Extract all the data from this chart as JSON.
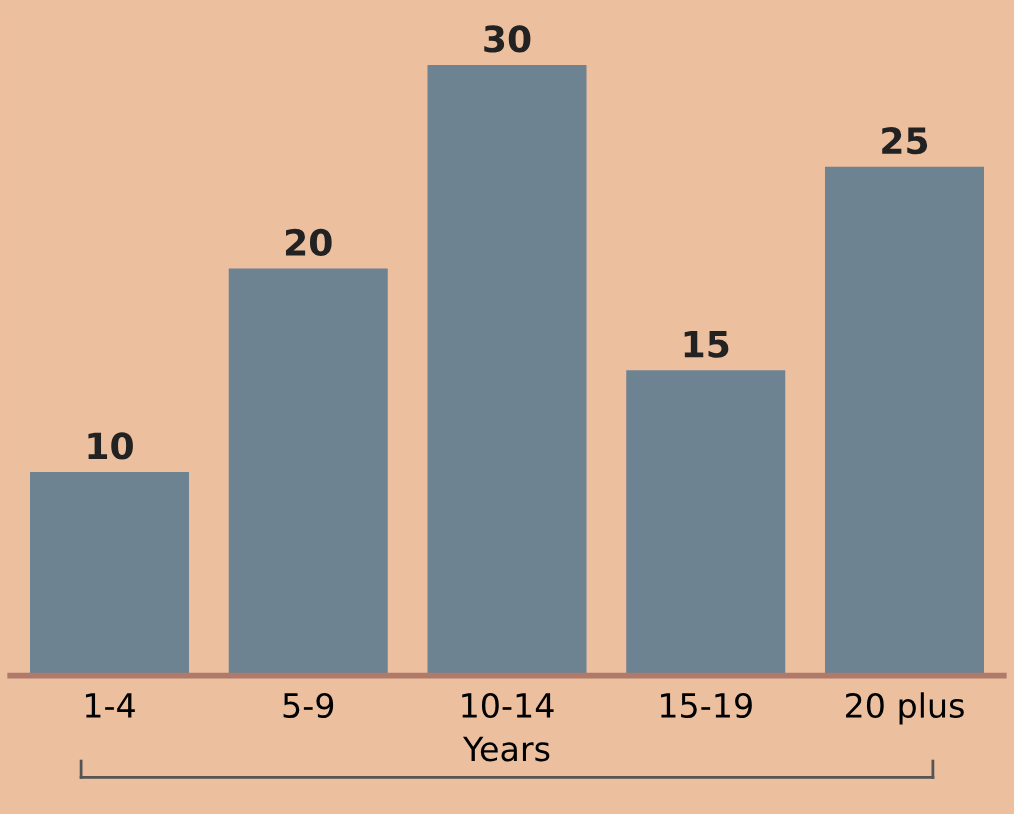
{
  "chart_data": {
    "type": "bar",
    "xlabel": "Years",
    "categories": [
      "1-4",
      "5-9",
      "10-14",
      "15-19",
      "20 plus"
    ],
    "values": [
      10,
      20,
      30,
      15,
      25
    ],
    "color": "#6d8392",
    "data_labels": true,
    "grid": false
  }
}
